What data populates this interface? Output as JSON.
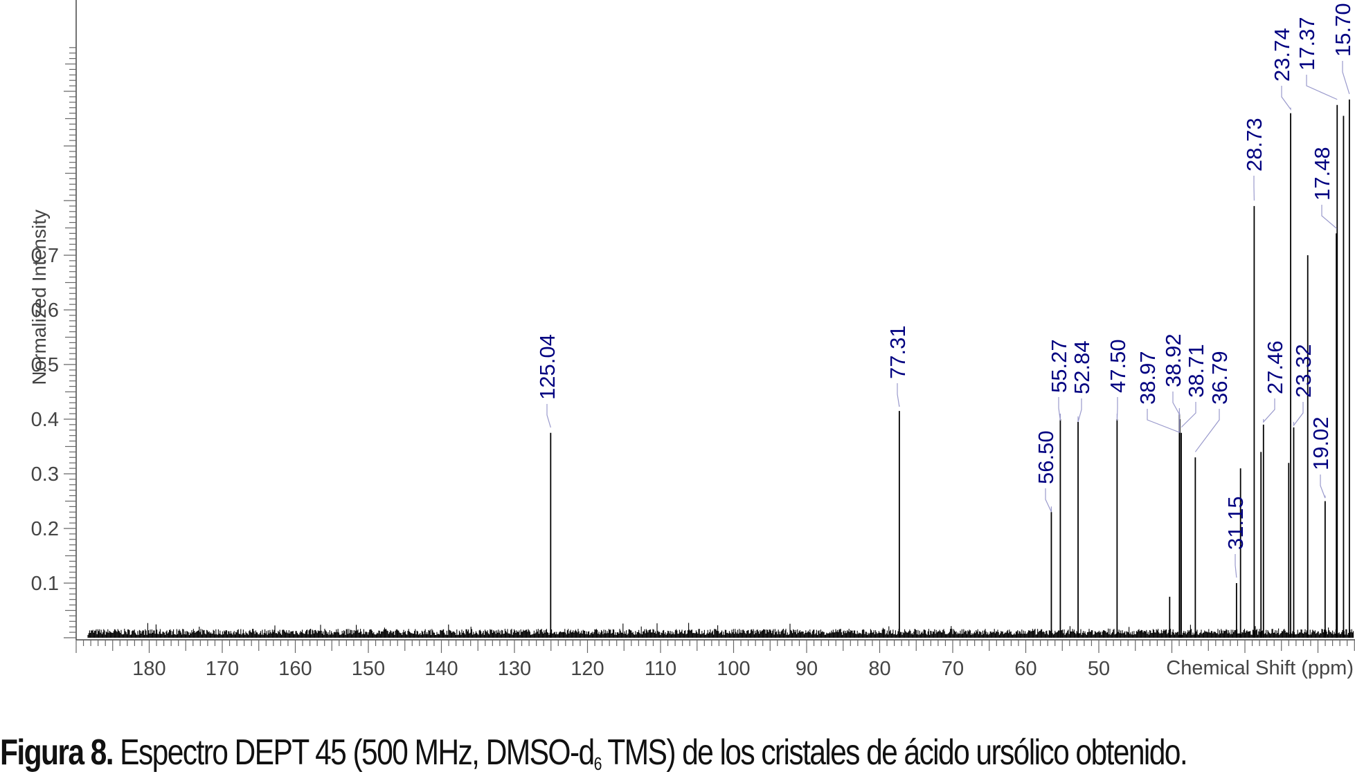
{
  "chart_data": {
    "type": "line",
    "subtype": "nmr_spectrum_stick",
    "title": "",
    "xlabel": "Chemical Shift (ppm)",
    "ylabel": "Normalized Intensity",
    "x_reversed": true,
    "xlim": [
      190,
      15
    ],
    "ylim": [
      0,
      1.17
    ],
    "x_ticks": [
      180,
      170,
      160,
      150,
      140,
      130,
      120,
      110,
      100,
      90,
      80,
      70,
      60,
      50
    ],
    "y_ticks": [
      0.1,
      0.2,
      0.3,
      0.4,
      0.5,
      0.6,
      0.7
    ],
    "grid": false,
    "legend": null,
    "label_color": "#000080",
    "line_color": "#000000",
    "peaks": [
      {
        "ppm": 125.04,
        "intensity": 0.375,
        "label": "125.04"
      },
      {
        "ppm": 77.31,
        "intensity": 0.415,
        "label": "77.31"
      },
      {
        "ppm": 56.5,
        "intensity": 0.23,
        "label": "56.50"
      },
      {
        "ppm": 55.27,
        "intensity": 0.4,
        "label": "55.27"
      },
      {
        "ppm": 52.84,
        "intensity": 0.395,
        "label": "52.84"
      },
      {
        "ppm": 47.5,
        "intensity": 0.4,
        "label": "47.50"
      },
      {
        "ppm": 38.97,
        "intensity": 0.41,
        "label": "38.97"
      },
      {
        "ppm": 38.92,
        "intensity": 0.4,
        "label": "38.92"
      },
      {
        "ppm": 38.71,
        "intensity": 0.375,
        "label": "38.71"
      },
      {
        "ppm": 36.79,
        "intensity": 0.33,
        "label": "36.79"
      },
      {
        "ppm": 31.15,
        "intensity": 0.1,
        "label": "31.15"
      },
      {
        "ppm": 28.73,
        "intensity": 0.79,
        "label": "28.73"
      },
      {
        "ppm": 27.46,
        "intensity": 0.39,
        "label": "27.46"
      },
      {
        "ppm": 23.74,
        "intensity": 0.96,
        "label": "23.74"
      },
      {
        "ppm": 23.32,
        "intensity": 0.385,
        "label": "23.32"
      },
      {
        "ppm": 19.02,
        "intensity": 0.25,
        "label": "19.02"
      },
      {
        "ppm": 17.48,
        "intensity": 0.74,
        "label": "17.48"
      },
      {
        "ppm": 17.37,
        "intensity": 0.975,
        "label": "17.37"
      },
      {
        "ppm": 15.7,
        "intensity": 0.985,
        "label": "15.70"
      }
    ],
    "unlabeled_peaks": [
      {
        "ppm": 40.3,
        "intensity": 0.075
      },
      {
        "ppm": 30.6,
        "intensity": 0.31
      },
      {
        "ppm": 27.8,
        "intensity": 0.34
      },
      {
        "ppm": 24.0,
        "intensity": 0.32
      },
      {
        "ppm": 21.4,
        "intensity": 0.7
      },
      {
        "ppm": 16.5,
        "intensity": 0.955
      }
    ]
  },
  "caption": {
    "label": "Figura 8.",
    "text_before_sub": " Espectro DEPT 45 (500 MHz, DMSO-d",
    "subscript": "6",
    "text_after_sub": " TMS) de los cristales de ácido ursólico obtenido."
  }
}
